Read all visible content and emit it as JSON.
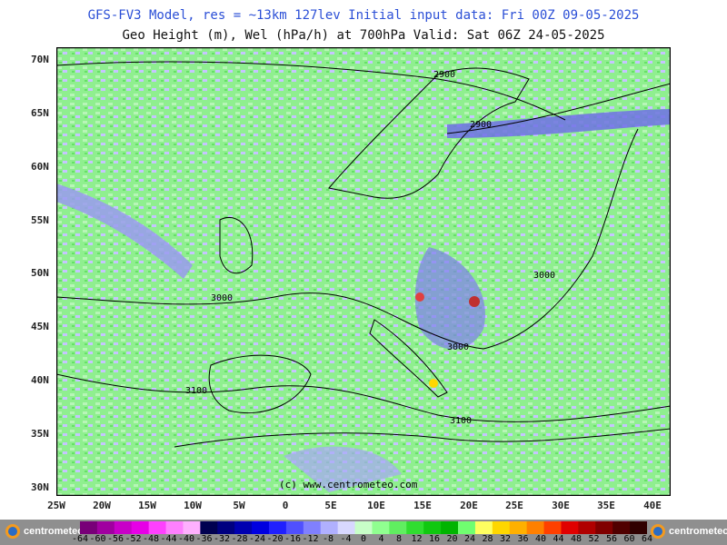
{
  "title": {
    "line1": "GFS-FV3 Model, res = ~13km 127lev   Initial input data: Fri 00Z 09-05-2025",
    "line2": "Geo Height (m), Wel (hPa/h) at 700hPa  Valid: Sat 06Z 24-05-2025"
  },
  "map": {
    "latitudes": [
      "70N",
      "65N",
      "60N",
      "55N",
      "50N",
      "45N",
      "40N",
      "35N",
      "30N"
    ],
    "longitudes": [
      "25W",
      "20W",
      "15W",
      "10W",
      "5W",
      "0",
      "5E",
      "10E",
      "15E",
      "20E",
      "25E",
      "30E",
      "35E",
      "40E"
    ],
    "contour_labels": [
      "2900",
      "2900",
      "3000",
      "3000",
      "3000",
      "3100",
      "3100"
    ],
    "watermark": "(c) www.centrometeo.com",
    "colors": {
      "background_field": "#90ee90",
      "negative_light": "#c7c7ff",
      "negative_strong": "#5050e0",
      "positive_strong": "#c04040",
      "contour": "#000000",
      "coastline": "#000000"
    }
  },
  "colorbar": {
    "labels": [
      "-64",
      "-60",
      "-56",
      "-52",
      "-48",
      "-44",
      "-40",
      "-36",
      "-32",
      "-28",
      "-24",
      "-20",
      "-16",
      "-12",
      "-8",
      "-4",
      "0",
      "4",
      "8",
      "12",
      "16",
      "20",
      "24",
      "28",
      "32",
      "36",
      "40",
      "44",
      "48",
      "52",
      "56",
      "60",
      "64"
    ],
    "colors": [
      "#780078",
      "#a000a0",
      "#c800c8",
      "#e600e6",
      "#ff40ff",
      "#ff80ff",
      "#ffb0ff",
      "#000050",
      "#000080",
      "#0000b0",
      "#0000e0",
      "#2020ff",
      "#5050ff",
      "#8080ff",
      "#b0b0ff",
      "#d8d8ff",
      "#c8ffc8",
      "#90ff90",
      "#60ee60",
      "#30dd30",
      "#10c810",
      "#00b400",
      "#70ff70",
      "#ffff60",
      "#ffd700",
      "#ffb000",
      "#ff8000",
      "#ff4000",
      "#e00000",
      "#b00000",
      "#800000",
      "#500000",
      "#300000"
    ]
  },
  "logos": {
    "left": "centrometeo",
    "right": "centrometeo"
  }
}
